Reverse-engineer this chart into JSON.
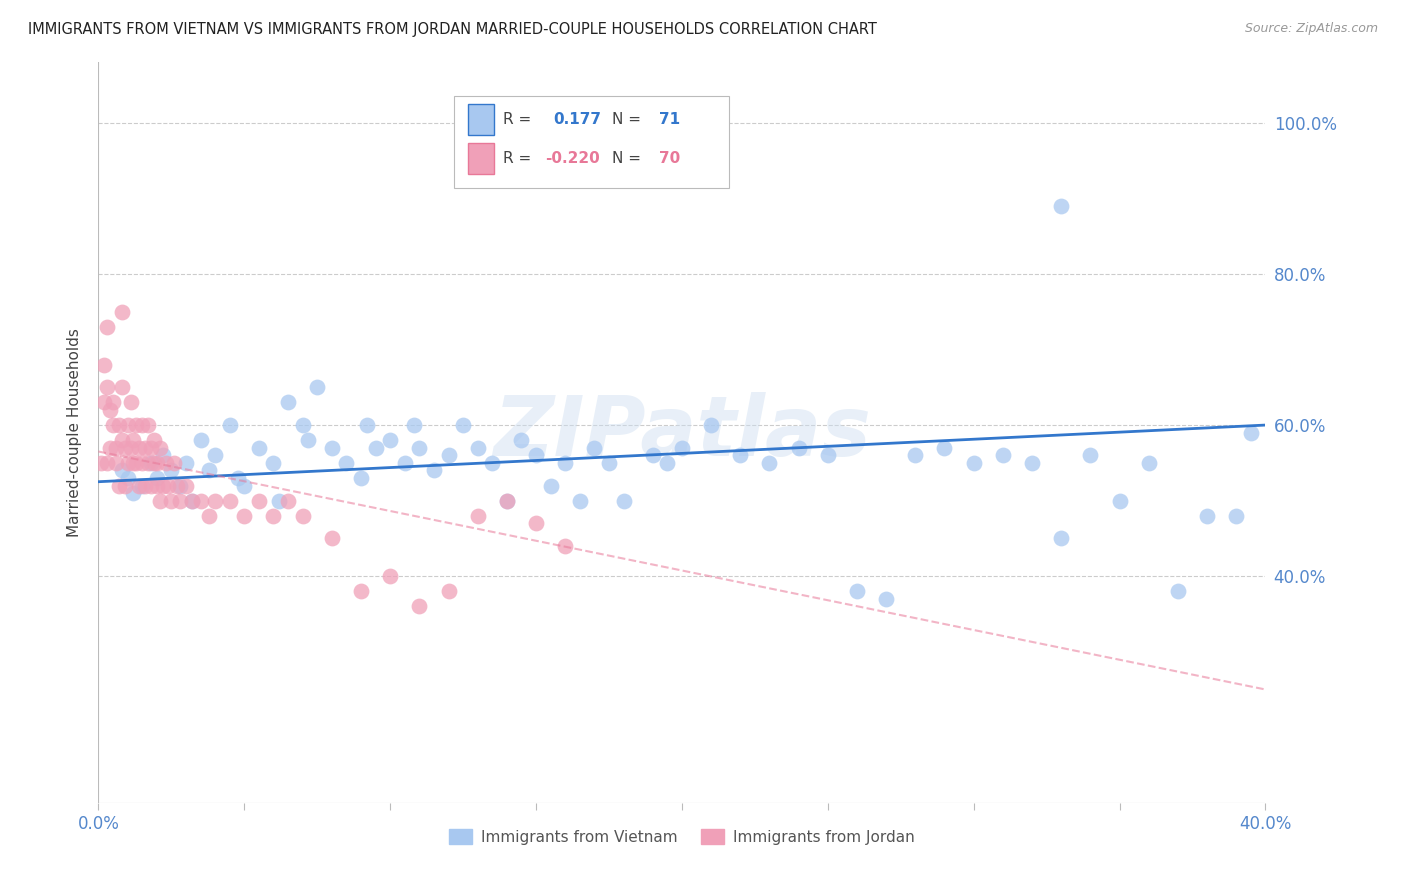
{
  "title": "IMMIGRANTS FROM VIETNAM VS IMMIGRANTS FROM JORDAN MARRIED-COUPLE HOUSEHOLDS CORRELATION CHART",
  "source": "Source: ZipAtlas.com",
  "ylabel": "Married-couple Households",
  "xlim": [
    0.0,
    0.4
  ],
  "ylim": [
    0.1,
    1.08
  ],
  "ytick_positions": [
    0.4,
    0.6,
    0.8,
    1.0
  ],
  "ytick_labels": [
    "40.0%",
    "60.0%",
    "80.0%",
    "100.0%"
  ],
  "xtick_positions": [
    0.0,
    0.05,
    0.1,
    0.15,
    0.2,
    0.25,
    0.3,
    0.35,
    0.4
  ],
  "xtick_labels": [
    "0.0%",
    "",
    "",
    "",
    "",
    "",
    "",
    "",
    "40.0%"
  ],
  "vietnam_color": "#a8c8f0",
  "jordan_color": "#f0a0b8",
  "vietnam_line_color": "#3377cc",
  "jordan_line_color": "#e87898",
  "R_vietnam": 0.177,
  "N_vietnam": 71,
  "R_jordan": -0.22,
  "N_jordan": 70,
  "legend_label_vietnam": "Immigrants from Vietnam",
  "legend_label_jordan": "Immigrants from Jordan",
  "watermark": "ZIPatlas",
  "background_color": "#ffffff",
  "grid_color": "#cccccc",
  "vietnam_line_x0": 0.0,
  "vietnam_line_x1": 0.4,
  "vietnam_line_y0": 0.525,
  "vietnam_line_y1": 0.6,
  "jordan_line_x0": 0.0,
  "jordan_line_x1": 0.4,
  "jordan_line_y0": 0.565,
  "jordan_line_y1": 0.25
}
